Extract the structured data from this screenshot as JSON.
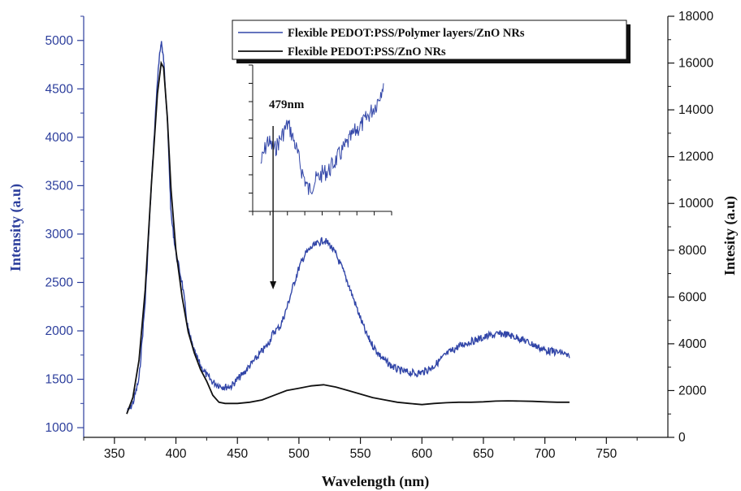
{
  "chart_data": {
    "type": "line",
    "xlabel": "Wavelength (nm)",
    "ylabel_left": "Intensity (a.u)",
    "ylabel_right": "Intesity (a.u)",
    "xlim": [
      325,
      800
    ],
    "xticks": [
      350,
      400,
      450,
      500,
      550,
      600,
      650,
      700,
      750
    ],
    "ylim_left": [
      900,
      5250
    ],
    "yticks_left": [
      1000,
      1500,
      2000,
      2500,
      3000,
      3500,
      4000,
      4500,
      5000
    ],
    "ylim_right": [
      0,
      18000
    ],
    "yticks_right": [
      0,
      2000,
      4000,
      6000,
      8000,
      10000,
      12000,
      14000,
      16000,
      18000
    ],
    "grid": false,
    "legend_position": "top-right",
    "colors": {
      "series_1": "#3246a8",
      "series_2": "#111111",
      "left_axis": "#2c3e9c"
    },
    "series": [
      {
        "name": "Flexible PEDOT:PSS/Polymer layers/ZnO NRs",
        "axis": "left",
        "x": [
          360,
          365,
          370,
          375,
          380,
          385,
          388,
          390,
          393,
          396,
          400,
          405,
          410,
          415,
          420,
          425,
          430,
          435,
          440,
          445,
          450,
          455,
          460,
          465,
          470,
          475,
          479,
          485,
          490,
          495,
          500,
          505,
          510,
          515,
          520,
          525,
          530,
          535,
          540,
          545,
          550,
          555,
          560,
          565,
          570,
          575,
          580,
          585,
          590,
          595,
          600,
          605,
          610,
          615,
          620,
          625,
          630,
          635,
          640,
          645,
          650,
          655,
          660,
          665,
          670,
          675,
          680,
          685,
          690,
          695,
          700,
          705,
          710,
          715,
          720
        ],
        "y": [
          1150,
          1250,
          1500,
          2300,
          3500,
          4600,
          5000,
          4800,
          4200,
          3200,
          2800,
          2500,
          2000,
          1780,
          1640,
          1540,
          1470,
          1440,
          1420,
          1430,
          1500,
          1560,
          1640,
          1710,
          1790,
          1860,
          1980,
          2050,
          2230,
          2450,
          2650,
          2790,
          2860,
          2900,
          2940,
          2890,
          2790,
          2650,
          2490,
          2310,
          2130,
          1960,
          1850,
          1760,
          1690,
          1640,
          1600,
          1580,
          1570,
          1560,
          1570,
          1600,
          1640,
          1700,
          1760,
          1800,
          1840,
          1870,
          1890,
          1910,
          1930,
          1950,
          1960,
          1970,
          1960,
          1940,
          1920,
          1890,
          1860,
          1830,
          1800,
          1790,
          1780,
          1770,
          1720
        ]
      },
      {
        "name": "Flexible PEDOT:PSS/ZnO NRs",
        "axis": "right",
        "x": [
          360,
          365,
          370,
          375,
          380,
          385,
          388,
          390,
          393,
          396,
          400,
          405,
          410,
          415,
          420,
          425,
          430,
          435,
          440,
          450,
          460,
          470,
          480,
          490,
          500,
          510,
          520,
          530,
          540,
          550,
          560,
          570,
          580,
          590,
          600,
          610,
          620,
          630,
          640,
          650,
          660,
          670,
          680,
          690,
          700,
          710,
          720
        ],
        "y": [
          1000,
          1700,
          3300,
          6300,
          10800,
          14700,
          16000,
          15800,
          13700,
          10600,
          8000,
          6000,
          4500,
          3600,
          2900,
          2400,
          1800,
          1500,
          1450,
          1450,
          1500,
          1600,
          1800,
          2000,
          2100,
          2200,
          2250,
          2150,
          2000,
          1850,
          1700,
          1600,
          1500,
          1450,
          1400,
          1450,
          1480,
          1500,
          1500,
          1520,
          1550,
          1560,
          1550,
          1540,
          1520,
          1500,
          1500
        ]
      }
    ],
    "annotations": [
      {
        "text": "479nm",
        "x": 479
      }
    ],
    "inset": {
      "x": [
        458,
        462,
        466,
        470,
        474,
        478,
        482,
        486,
        490,
        494,
        498,
        502,
        506,
        510,
        514,
        518,
        522,
        526,
        530
      ],
      "y": [
        1880,
        1950,
        1920,
        1960,
        2000,
        1940,
        1860,
        1800,
        1830,
        1850,
        1860,
        1890,
        1920,
        1950,
        1980,
        2000,
        2030,
        2060,
        2120
      ]
    }
  }
}
